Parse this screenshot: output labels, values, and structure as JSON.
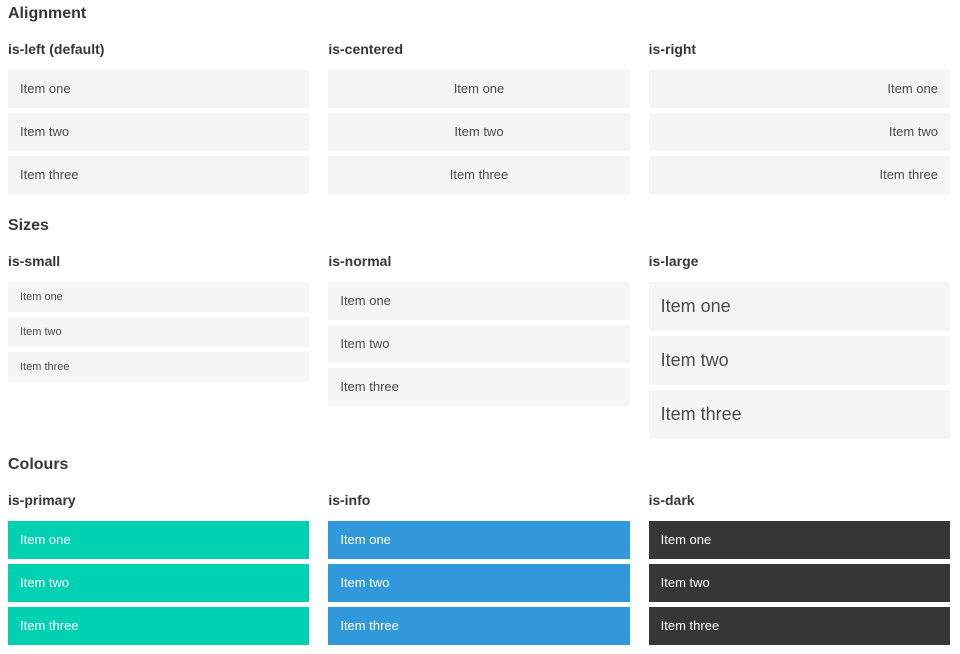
{
  "theme": {
    "primary": "#00d1b2",
    "info": "#3298dc",
    "dark": "#363636",
    "itembg": "#f5f5f5",
    "itemtext": "#4a4a4a",
    "heading": "#363636",
    "oncolor": "#ffffff",
    "pagebg": "#ffffff"
  },
  "sections": [
    {
      "title": "Alignment",
      "columns": [
        {
          "heading": "is-left (default)",
          "items": [
            "Item one",
            "Item two",
            "Item three"
          ]
        },
        {
          "heading": "is-centered",
          "items": [
            "Item one",
            "Item two",
            "Item three"
          ]
        },
        {
          "heading": "is-right",
          "items": [
            "Item one",
            "Item two",
            "Item three"
          ]
        }
      ]
    },
    {
      "title": "Sizes",
      "columns": [
        {
          "heading": "is-small",
          "items": [
            "Item one",
            "Item two",
            "Item three"
          ]
        },
        {
          "heading": "is-normal",
          "items": [
            "Item one",
            "Item two",
            "Item three"
          ]
        },
        {
          "heading": "is-large",
          "items": [
            "Item one",
            "Item two",
            "Item three"
          ]
        }
      ]
    },
    {
      "title": "Colours",
      "columns": [
        {
          "heading": "is-primary",
          "items": [
            "Item one",
            "Item two",
            "Item three"
          ]
        },
        {
          "heading": "is-info",
          "items": [
            "Item one",
            "Item two",
            "Item three"
          ]
        },
        {
          "heading": "is-dark",
          "items": [
            "Item one",
            "Item two",
            "Item three"
          ]
        }
      ]
    }
  ]
}
